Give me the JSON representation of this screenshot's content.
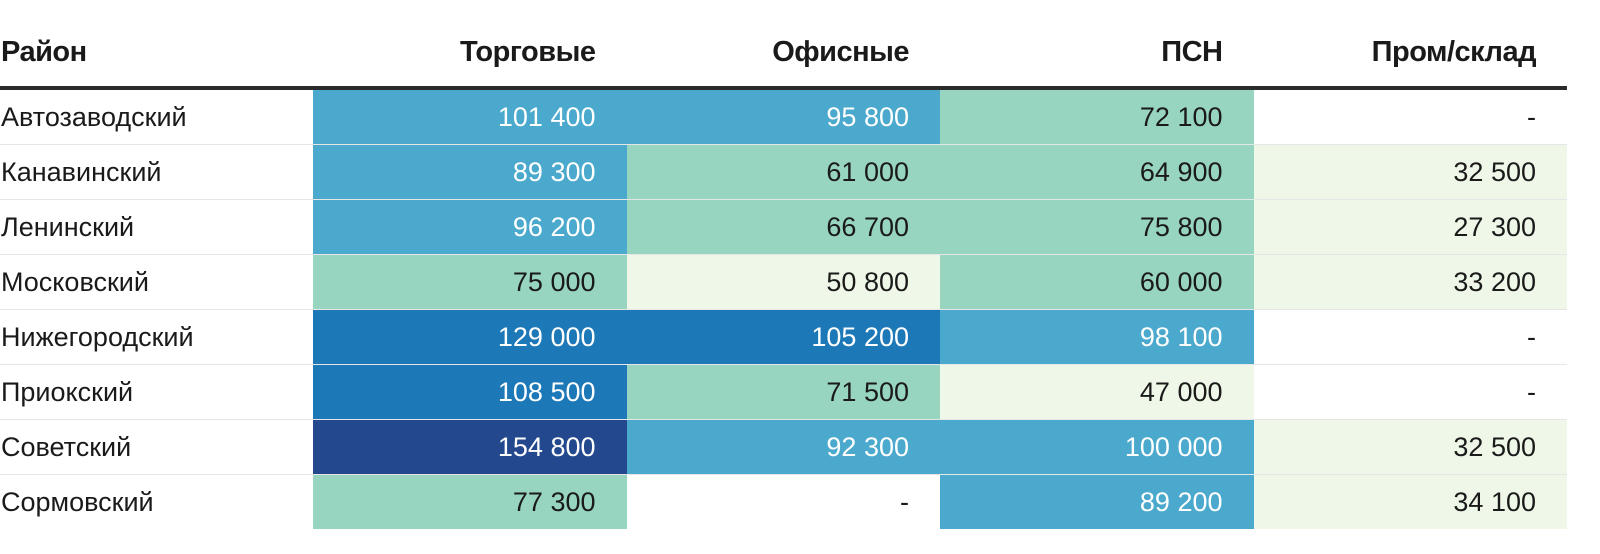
{
  "chart_data": {
    "type": "heatmap",
    "title": "",
    "columns": [
      "Район",
      "Торговые",
      "Офисные",
      "ПСН",
      "Пром/склад"
    ],
    "rows": [
      {
        "district": "Автозаводский",
        "values": [
          101400,
          95800,
          72100,
          null
        ]
      },
      {
        "district": "Канавинский",
        "values": [
          89300,
          61000,
          64900,
          32500
        ]
      },
      {
        "district": "Ленинский",
        "values": [
          96200,
          66700,
          75800,
          27300
        ]
      },
      {
        "district": "Московский",
        "values": [
          75000,
          50800,
          60000,
          33200
        ]
      },
      {
        "district": "Нижегородский",
        "values": [
          129000,
          105200,
          98100,
          null
        ]
      },
      {
        "district": "Приокский",
        "values": [
          108500,
          71500,
          47000,
          null
        ]
      },
      {
        "district": "Советский",
        "values": [
          154800,
          92300,
          100000,
          32500
        ]
      },
      {
        "district": "Сормовский",
        "values": [
          77300,
          null,
          89200,
          34100
        ]
      }
    ],
    "missing_label": "-",
    "thousands_separator": " ",
    "color_scale": {
      "bins": [
        {
          "min": 0,
          "max": 50000,
          "color": "#eff8e8",
          "text_color": "#1a1a1a"
        },
        {
          "min": 50000,
          "max": 60000,
          "color": "#eff8e8",
          "text_color": "#1a1a1a"
        },
        {
          "min": 60000,
          "max": 80000,
          "color": "#97d5c0",
          "text_color": "#1a1a1a"
        },
        {
          "min": 80000,
          "max": 102000,
          "color": "#4aa9cc",
          "text_color": "#ffffff"
        },
        {
          "min": 102000,
          "max": 130000,
          "color": "#1c78b6",
          "text_color": "#ffffff"
        },
        {
          "min": 130000,
          "max": 200000,
          "color": "#24488d",
          "text_color": "#ffffff"
        }
      ],
      "missing_color": "#ffffff",
      "missing_text_color": "#1a1a1a"
    }
  }
}
